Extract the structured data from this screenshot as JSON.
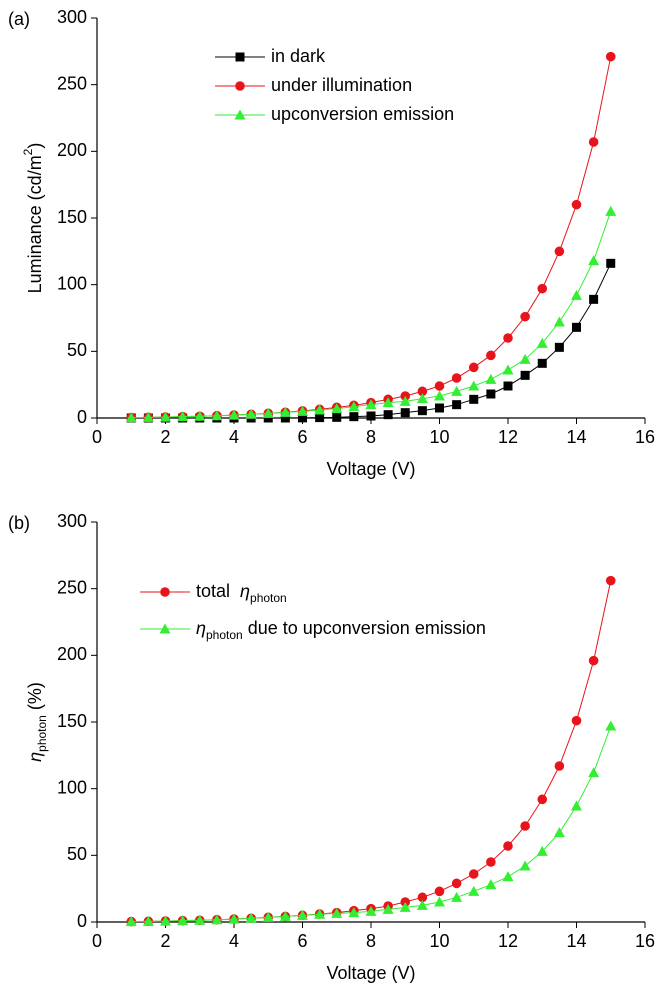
{
  "chart_data": [
    {
      "type": "line",
      "panel_label": "(a)",
      "xlabel": "Voltage (V)",
      "ylabel": [
        {
          "text": "Luminance (cd/m"
        },
        {
          "text": "2",
          "sup": true
        },
        {
          "text": ")"
        }
      ],
      "xlim": [
        0,
        16
      ],
      "xticks": [
        0,
        2,
        4,
        6,
        8,
        10,
        12,
        14,
        16
      ],
      "ylim": [
        0,
        300
      ],
      "yticks": [
        0,
        50,
        100,
        150,
        200,
        250,
        300
      ],
      "legend": "upper center",
      "x": [
        1,
        1.5,
        2,
        2.5,
        3,
        3.5,
        4,
        4.5,
        5,
        5.5,
        6,
        6.5,
        7,
        7.5,
        8,
        8.5,
        9,
        9.5,
        10,
        10.5,
        11,
        11.5,
        12,
        12.5,
        13,
        13.5,
        14,
        14.5,
        15
      ],
      "series": [
        {
          "name": [
            {
              "text": "in dark"
            }
          ],
          "color": "#000000",
          "marker": "square",
          "values": [
            0,
            0,
            0,
            0,
            0,
            0,
            0,
            0,
            0,
            0,
            0.1,
            0.3,
            0.5,
            1,
            1.5,
            2.5,
            4,
            5.5,
            7.5,
            10,
            14,
            18,
            24,
            32,
            41,
            53,
            68,
            89,
            116
          ]
        },
        {
          "name": [
            {
              "text": "under illumination"
            }
          ],
          "color": "#e8141b",
          "marker": "circle",
          "values": [
            0.3,
            0.5,
            0.7,
            1,
            1.3,
            1.7,
            2.2,
            2.8,
            3.5,
            4.3,
            5.3,
            6.5,
            8,
            9.5,
            11.5,
            14,
            16.5,
            20,
            24,
            30,
            38,
            47,
            60,
            76,
            97,
            125,
            160,
            207,
            271
          ]
        },
        {
          "name": [
            {
              "text": "upconversion emission"
            }
          ],
          "color": "#33ee33",
          "marker": "triangle",
          "values": [
            0.3,
            0.5,
            0.7,
            1,
            1.3,
            1.7,
            2.2,
            2.8,
            3.5,
            4.2,
            5,
            6,
            7,
            8.5,
            10,
            11.5,
            12.5,
            14.5,
            16.5,
            20,
            24,
            29,
            36,
            44,
            56,
            72,
            92,
            118,
            155
          ]
        }
      ]
    },
    {
      "type": "line",
      "panel_label": "(b)",
      "xlabel": "Voltage (V)",
      "ylabel": [
        {
          "text": "η",
          "italic": true
        },
        {
          "text": "photon",
          "sub": true
        },
        {
          "text": " (%)"
        }
      ],
      "xlim": [
        0,
        16
      ],
      "xticks": [
        0,
        2,
        4,
        6,
        8,
        10,
        12,
        14,
        16
      ],
      "ylim": [
        0,
        300
      ],
      "yticks": [
        0,
        50,
        100,
        150,
        200,
        250,
        300
      ],
      "legend": "upper left",
      "x": [
        1,
        1.5,
        2,
        2.5,
        3,
        3.5,
        4,
        4.5,
        5,
        5.5,
        6,
        6.5,
        7,
        7.5,
        8,
        8.5,
        9,
        9.5,
        10,
        10.5,
        11,
        11.5,
        12,
        12.5,
        13,
        13.5,
        14,
        14.5,
        15
      ],
      "series": [
        {
          "name": [
            {
              "text": "total  "
            },
            {
              "text": "η",
              "italic": true
            },
            {
              "text": "photon",
              "sub": true
            }
          ],
          "color": "#e8141b",
          "marker": "circle",
          "values": [
            0.3,
            0.5,
            0.7,
            1,
            1.3,
            1.7,
            2.2,
            2.8,
            3.5,
            4.2,
            5,
            6,
            7,
            8.5,
            10,
            12,
            15,
            18.5,
            23,
            29,
            36,
            45,
            57,
            72,
            92,
            117,
            151,
            196,
            256
          ]
        },
        {
          "name": [
            {
              "text": "η",
              "italic": true
            },
            {
              "text": "photon",
              "sub": true
            },
            {
              "text": " due to upconversion emission"
            }
          ],
          "color": "#33ee33",
          "marker": "triangle",
          "values": [
            0.3,
            0.5,
            0.7,
            1,
            1.3,
            1.7,
            2.2,
            2.8,
            3.5,
            4.2,
            5,
            5.8,
            6.5,
            7,
            8,
            9.5,
            11,
            12.5,
            15,
            18.5,
            23,
            28,
            34,
            42,
            53,
            67,
            87,
            112,
            147
          ]
        }
      ]
    }
  ]
}
